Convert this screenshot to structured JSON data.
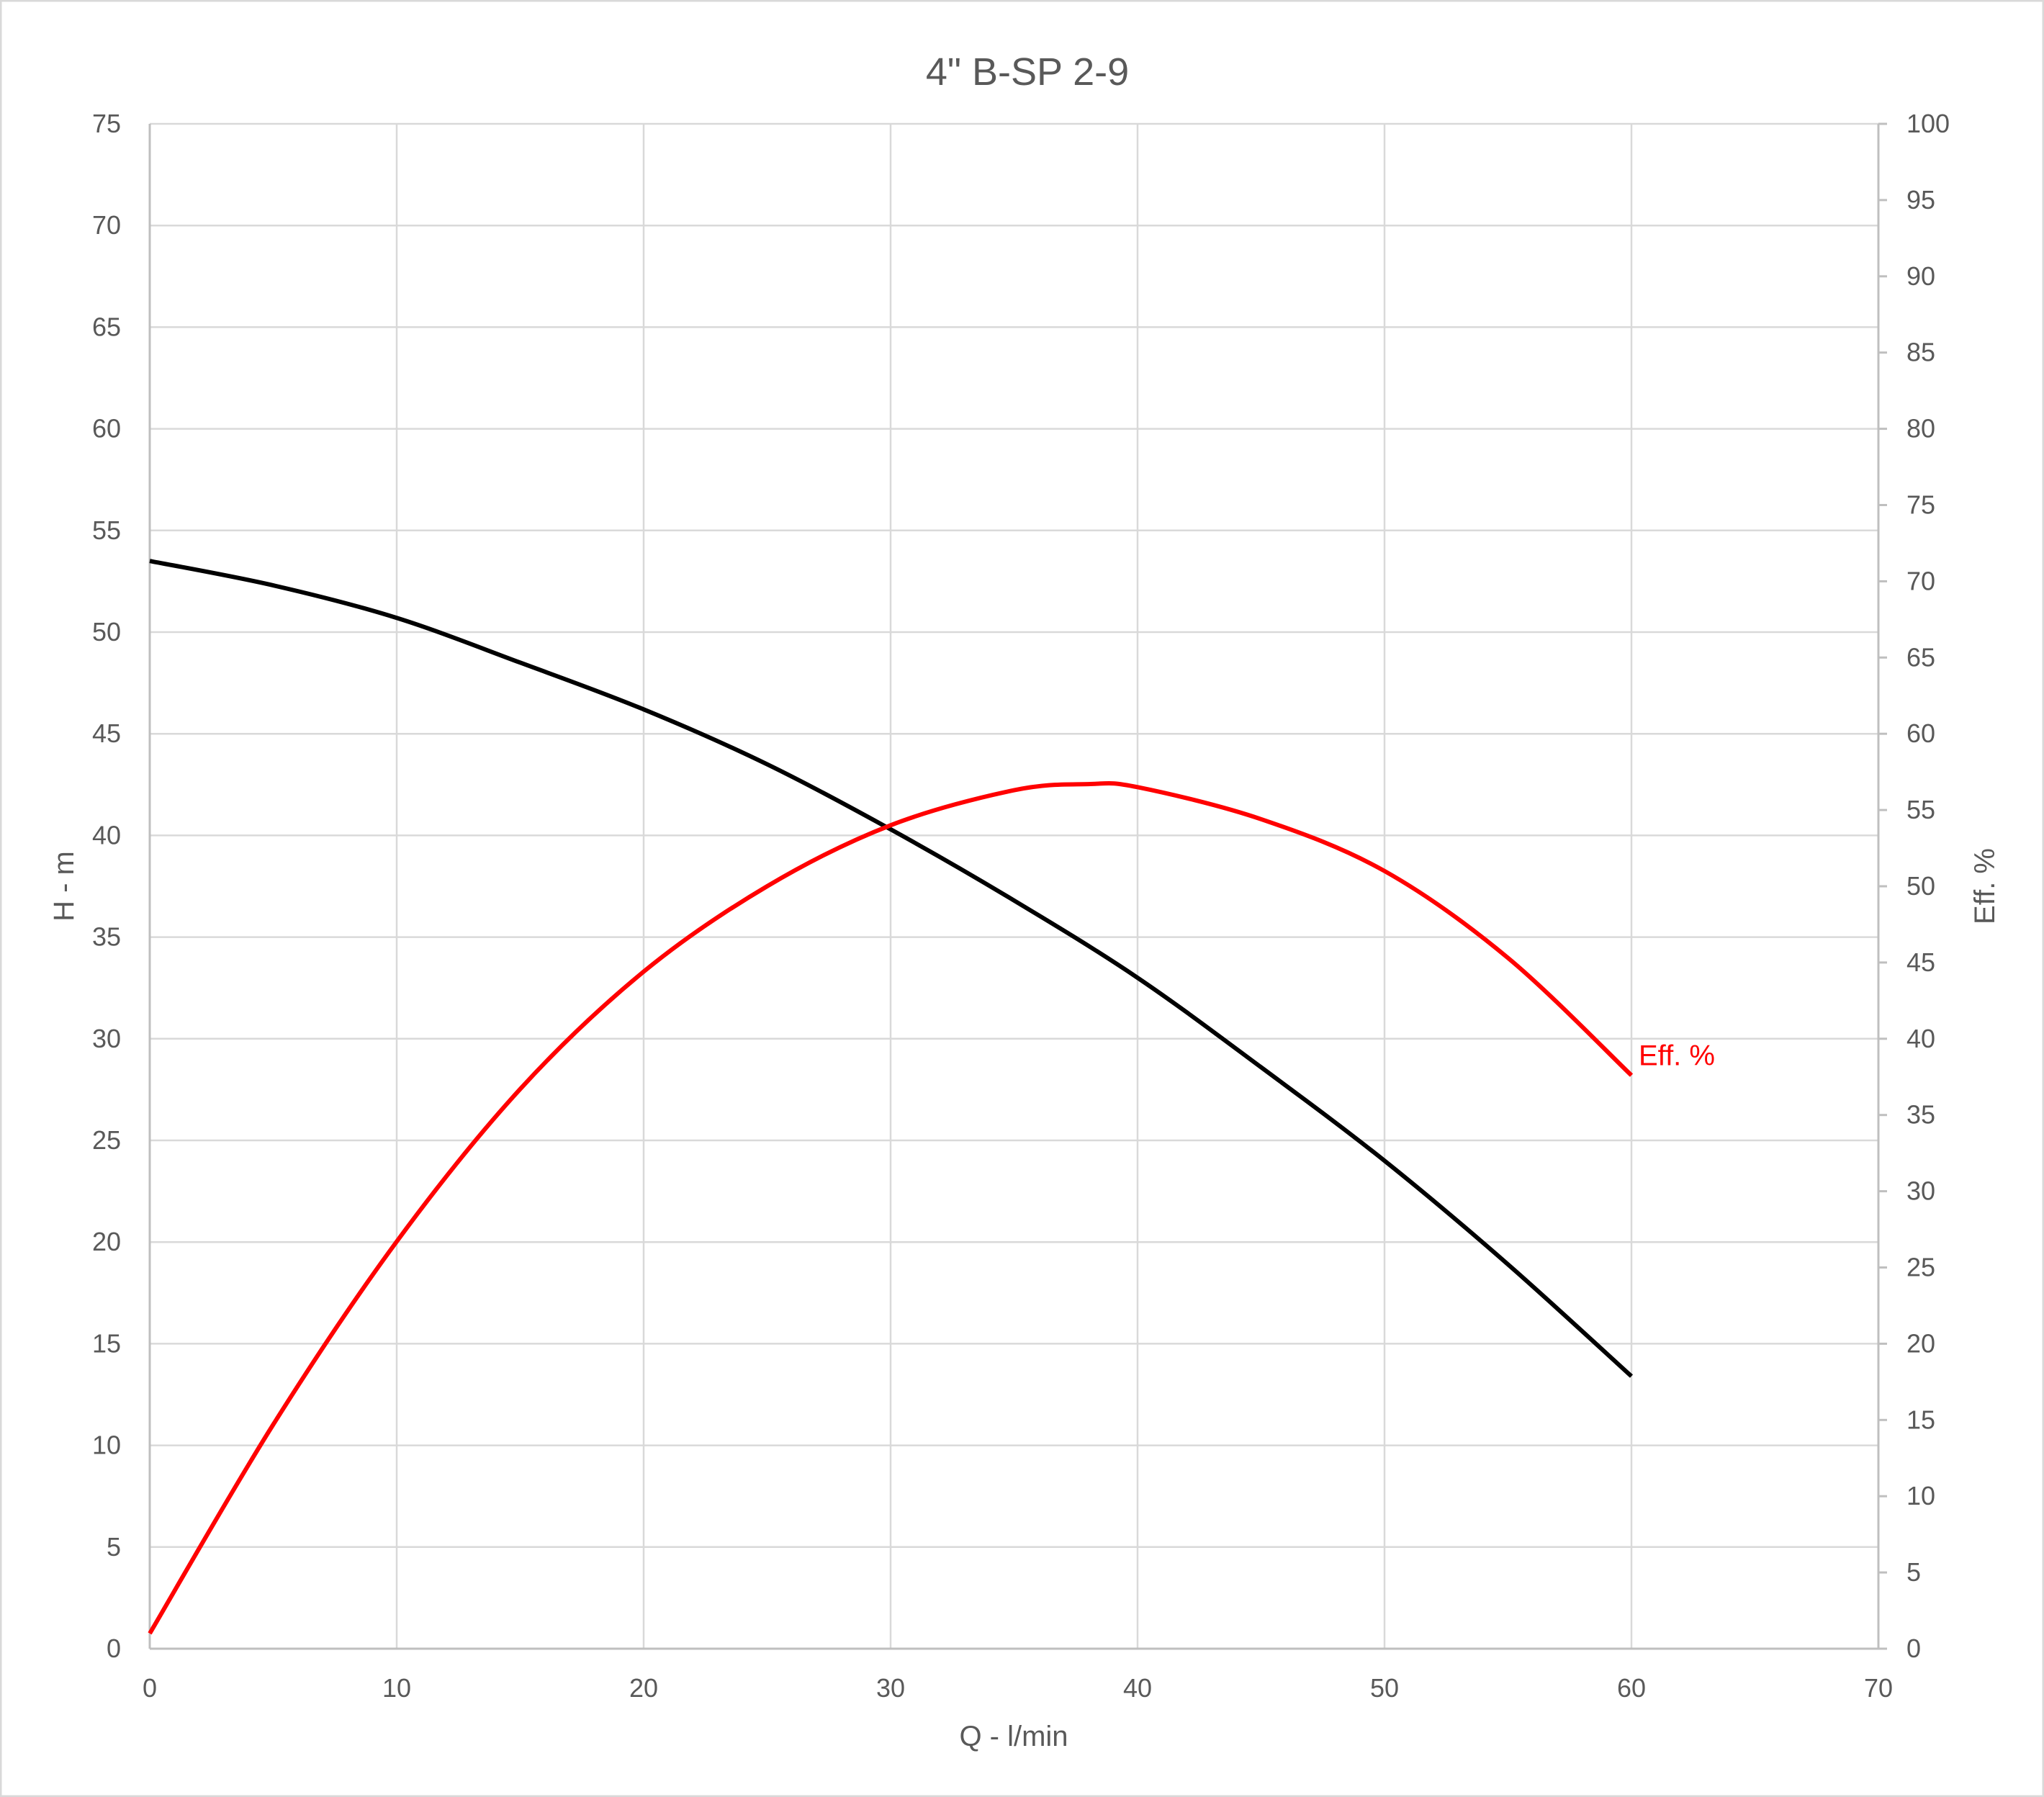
{
  "chart_data": {
    "type": "line",
    "title": "4\" B-SP 2-9",
    "xlabel": "Q - l/min",
    "ylabel": "H - m",
    "y2label": "Eff. %",
    "xlim": [
      0,
      70
    ],
    "ylim": [
      0,
      75
    ],
    "y2lim": [
      0,
      100
    ],
    "x_ticks": [
      0,
      10,
      20,
      30,
      40,
      50,
      60,
      70
    ],
    "y_ticks": [
      0,
      5,
      10,
      15,
      20,
      25,
      30,
      35,
      40,
      45,
      50,
      55,
      60,
      65,
      70,
      75
    ],
    "y2_ticks": [
      0,
      5,
      10,
      15,
      20,
      25,
      30,
      35,
      40,
      45,
      50,
      55,
      60,
      65,
      70,
      75,
      80,
      85,
      90,
      95,
      100
    ],
    "grid": true,
    "legend": "none",
    "series": [
      {
        "axis": "left",
        "color": "#000000",
        "x": [
          0,
          5,
          10,
          15,
          20,
          25,
          30,
          35,
          40,
          45,
          50,
          55,
          60
        ],
        "values": [
          53.5,
          52.3,
          50.7,
          48.5,
          46.2,
          43.5,
          40.3,
          36.8,
          33.0,
          28.6,
          24.0,
          18.9,
          13.4
        ]
      },
      {
        "name": "Eff. %",
        "axis": "right",
        "color": "#ff0000",
        "x": [
          0,
          5,
          10,
          15,
          20,
          25,
          30,
          35,
          38,
          40,
          45,
          50,
          55,
          60
        ],
        "values": [
          1.0,
          14.7,
          26.7,
          36.7,
          44.4,
          50.0,
          54.0,
          56.3,
          56.7,
          56.5,
          54.4,
          51.0,
          45.3,
          37.6
        ]
      }
    ]
  }
}
